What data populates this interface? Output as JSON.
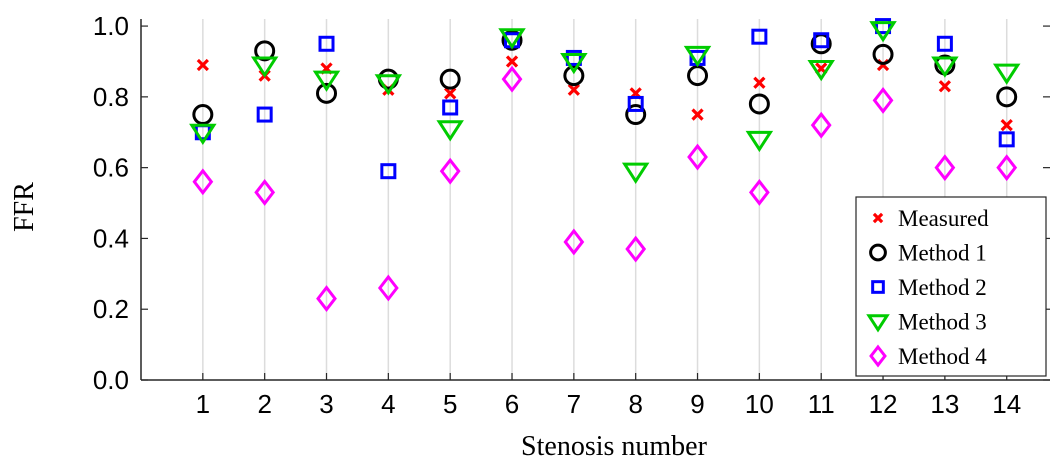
{
  "chart_data": {
    "type": "scatter",
    "xlabel": "Stenosis number",
    "ylabel": "FFR",
    "x": [
      1,
      2,
      3,
      4,
      5,
      6,
      7,
      8,
      9,
      10,
      11,
      12,
      13,
      14
    ],
    "xlim": [
      0,
      14.7
    ],
    "ylim": [
      0,
      1.02
    ],
    "yticks": [
      "0.0",
      "0.2",
      "0.4",
      "0.6",
      "0.8",
      "1.0"
    ],
    "xticks": [
      "1",
      "2",
      "3",
      "4",
      "5",
      "6",
      "7",
      "8",
      "9",
      "10",
      "11",
      "12",
      "13",
      "14"
    ],
    "grid": "vertical",
    "legend_position": "bottom-right",
    "series": [
      {
        "name": "Measured",
        "marker": "x",
        "color": "#ff0000",
        "values": [
          0.89,
          0.86,
          0.88,
          0.82,
          0.81,
          0.9,
          0.82,
          0.81,
          0.75,
          0.84,
          0.88,
          0.89,
          0.83,
          0.72
        ]
      },
      {
        "name": "Method 1",
        "marker": "circle",
        "color": "#000000",
        "values": [
          0.75,
          0.93,
          0.81,
          0.85,
          0.85,
          0.96,
          0.86,
          0.75,
          0.86,
          0.78,
          0.95,
          0.92,
          0.89,
          0.8
        ]
      },
      {
        "name": "Method 2",
        "marker": "square",
        "color": "#0000ff",
        "values": [
          0.7,
          0.75,
          0.95,
          0.59,
          0.77,
          0.96,
          0.91,
          0.78,
          0.91,
          0.97,
          0.96,
          1.0,
          0.95,
          0.68
        ]
      },
      {
        "name": "Method 3",
        "marker": "triangle-down",
        "color": "#00cc00",
        "values": [
          0.7,
          0.89,
          0.85,
          0.84,
          0.71,
          0.97,
          0.9,
          0.59,
          0.92,
          0.68,
          0.88,
          0.99,
          0.89,
          0.87
        ]
      },
      {
        "name": "Method 4",
        "marker": "diamond",
        "color": "#ff00ff",
        "values": [
          0.56,
          0.53,
          0.23,
          0.26,
          0.59,
          0.85,
          0.39,
          0.37,
          0.63,
          0.53,
          0.72,
          0.79,
          0.6,
          0.6
        ]
      }
    ]
  }
}
